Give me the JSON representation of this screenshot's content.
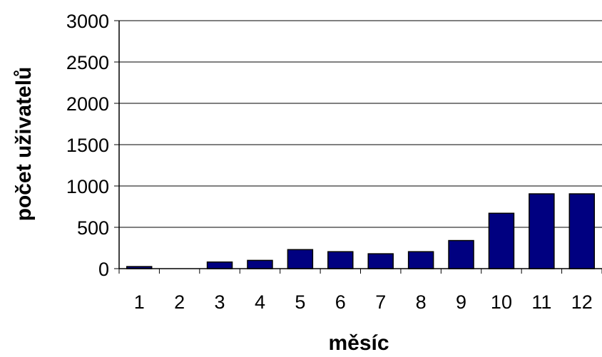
{
  "chart_data": {
    "type": "bar",
    "categories": [
      "1",
      "2",
      "3",
      "4",
      "5",
      "6",
      "7",
      "8",
      "9",
      "10",
      "11",
      "12"
    ],
    "values": [
      25,
      0,
      80,
      100,
      230,
      205,
      180,
      205,
      340,
      670,
      905,
      905
    ],
    "xlabel": "měsíc",
    "ylabel": "počet uživatelů",
    "ylim": [
      0,
      3000
    ],
    "yticks": [
      "0",
      "500",
      "1000",
      "1500",
      "2000",
      "2500",
      "3000"
    ],
    "grid": true,
    "bar_color": "#000080",
    "bar_edge_color": "#000000",
    "grid_color": "#000000"
  }
}
